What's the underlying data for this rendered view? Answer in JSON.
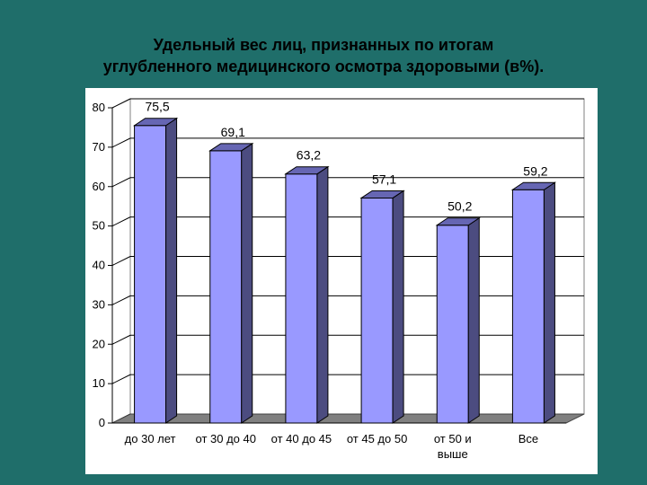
{
  "slide": {
    "title_line1": "Удельный вес лиц, признанных по итогам",
    "title_line2": "углубленного медицинского осмотра здоровыми (в%).",
    "background_color": "#1f6e6a"
  },
  "chart_data": {
    "type": "bar",
    "title": "",
    "xlabel": "",
    "ylabel": "",
    "ylim": [
      0,
      80
    ],
    "yticks": [
      "0",
      "10",
      "20",
      "30",
      "40",
      "50",
      "60",
      "70",
      "80"
    ],
    "categories": [
      [
        "до 30 лет"
      ],
      [
        "от 30 до 40"
      ],
      [
        "от 40 до 45"
      ],
      [
        "от 45 до 50"
      ],
      [
        "от 50 и",
        "выше"
      ],
      [
        "Все"
      ]
    ],
    "values": [
      75.5,
      69.1,
      63.2,
      57.1,
      50.2,
      59.2
    ],
    "value_labels": [
      "75,5",
      "69,1",
      "63,2",
      "57,1",
      "50,2",
      "59,2"
    ],
    "grid": true,
    "bar_color": "#9999ff",
    "bar_side_color": "#4c4c80",
    "bar_top_color": "#6666b3"
  }
}
